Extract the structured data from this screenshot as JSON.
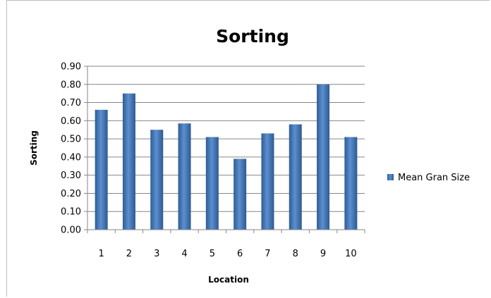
{
  "chart_data": {
    "type": "bar",
    "title": "Sorting",
    "xlabel": "Location",
    "ylabel": "Sorting",
    "categories": [
      "1",
      "2",
      "3",
      "4",
      "5",
      "6",
      "7",
      "8",
      "9",
      "10"
    ],
    "series": [
      {
        "name": "Mean Gran Size",
        "values": [
          0.66,
          0.75,
          0.55,
          0.585,
          0.51,
          0.39,
          0.53,
          0.58,
          0.8,
          0.51
        ],
        "color": "#4f81bd"
      }
    ],
    "ylim": [
      0,
      0.9
    ],
    "yticks": [
      "0.00",
      "0.10",
      "0.20",
      "0.30",
      "0.40",
      "0.50",
      "0.60",
      "0.70",
      "0.80",
      "0.90"
    ],
    "grid": true,
    "legend": "right"
  }
}
